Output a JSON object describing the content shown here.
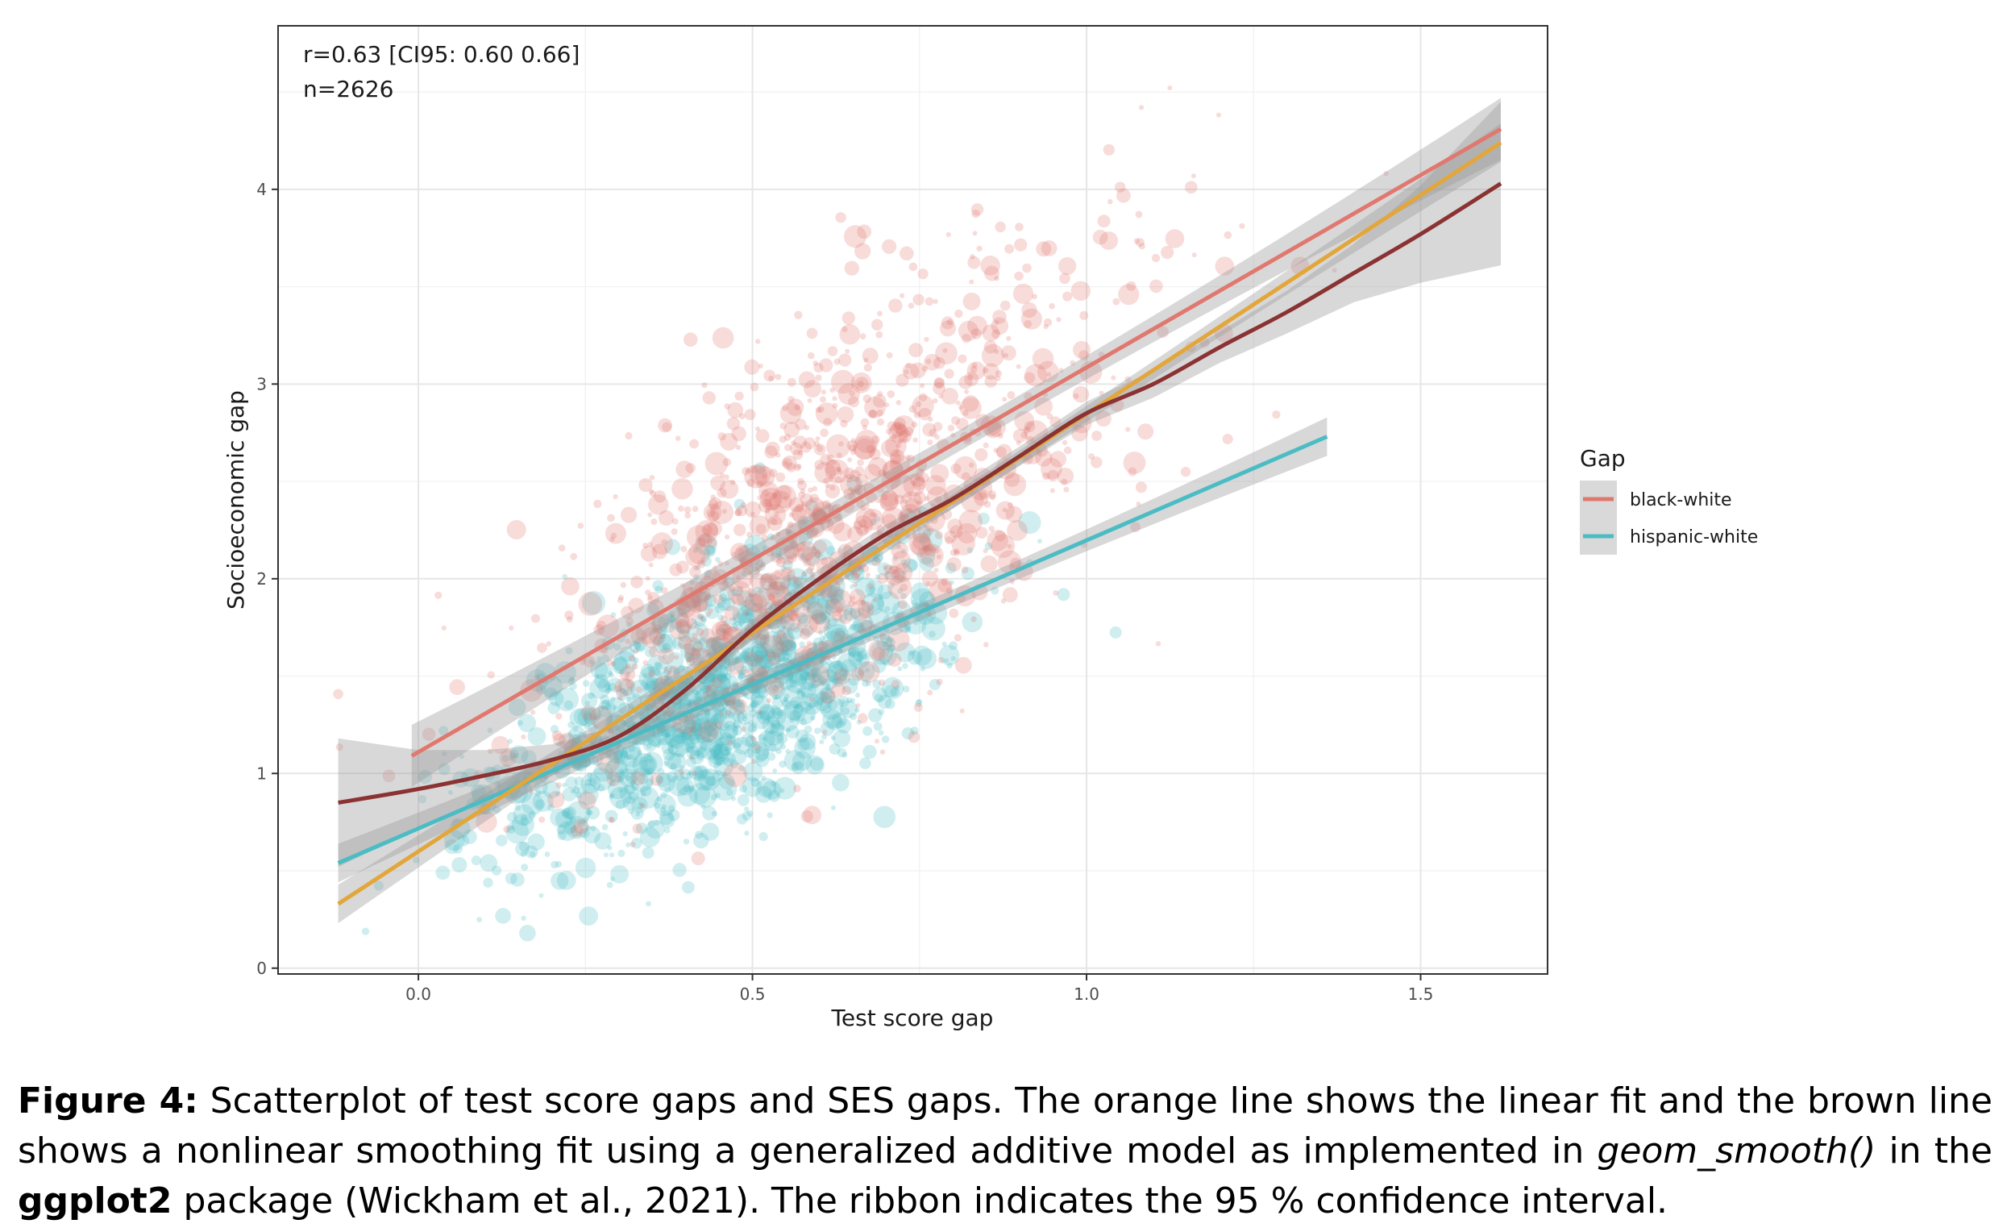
{
  "caption": {
    "label": "Figure 4:",
    "text_before": " Scatterplot of test score gaps and SES gaps. The orange line shows the linear fit and the brown line shows a nonlinear smoothing fit using a generalized additive model as implemented in ",
    "code": "geom_smooth()",
    "text_middle": " in the ",
    "package": "ggplot2",
    "text_after": " package (Wickham et al., 2021). The ribbon indicates the 95 % confidence interval."
  },
  "chart_data": {
    "type": "scatter",
    "xlabel": "Test score gap",
    "ylabel": "Socioeconomic gap",
    "xlim": [
      -0.21,
      1.69
    ],
    "ylim": [
      -0.03,
      4.84
    ],
    "x_ticks": [
      0.0,
      0.5,
      1.0,
      1.5
    ],
    "x_tick_labels": [
      "0.0",
      "0.5",
      "1.0",
      "1.5"
    ],
    "y_ticks": [
      0,
      1,
      2,
      3,
      4
    ],
    "y_tick_labels": [
      "0",
      "1",
      "2",
      "3",
      "4"
    ],
    "grid": true,
    "annotations": [
      "r=0.63 [CI95: 0.60 0.66]",
      "n=2626"
    ],
    "legend": {
      "title": "Gap",
      "position": "right",
      "entries": [
        {
          "label": "black-white",
          "color": "#e0786f"
        },
        {
          "label": "hispanic-white",
          "color": "#4bbcc4"
        }
      ]
    },
    "series": [
      {
        "name": "black-white",
        "color": "#e0786f",
        "approx_count": 1160
      },
      {
        "name": "hispanic-white",
        "color": "#4bbcc4",
        "approx_count": 1466
      }
    ],
    "fits": [
      {
        "series": "black-white",
        "kind": "linear",
        "color": "#e0786f",
        "x": [
          -0.01,
          1.62
        ],
        "y": [
          1.09,
          4.31
        ],
        "se": [
          0.12,
          0.17
        ]
      },
      {
        "series": "hispanic-white",
        "kind": "linear",
        "color": "#4bbcc4",
        "x": [
          -0.12,
          1.36
        ],
        "y": [
          0.54,
          2.73
        ],
        "se": [
          0.09,
          0.09
        ]
      },
      {
        "series": "all",
        "kind": "linear",
        "color": "#e2a63a",
        "x": [
          -0.12,
          1.62
        ],
        "y": [
          0.33,
          4.24
        ],
        "se": [
          0.08,
          0.1
        ]
      },
      {
        "series": "all",
        "kind": "gam",
        "color": "#8b3232",
        "x": [
          -0.12,
          0.0,
          0.1,
          0.2,
          0.3,
          0.4,
          0.5,
          0.6,
          0.7,
          0.8,
          0.9,
          1.0,
          1.1,
          1.2,
          1.3,
          1.4,
          1.5,
          1.62
        ],
        "y": [
          0.85,
          0.92,
          0.99,
          1.07,
          1.19,
          1.43,
          1.74,
          2.0,
          2.23,
          2.41,
          2.63,
          2.85,
          3.0,
          3.19,
          3.37,
          3.57,
          3.77,
          4.03
        ],
        "se": [
          0.33,
          0.2,
          0.13,
          0.08,
          0.06,
          0.05,
          0.05,
          0.05,
          0.05,
          0.05,
          0.05,
          0.06,
          0.07,
          0.08,
          0.11,
          0.15,
          0.25,
          0.42
        ]
      }
    ]
  }
}
